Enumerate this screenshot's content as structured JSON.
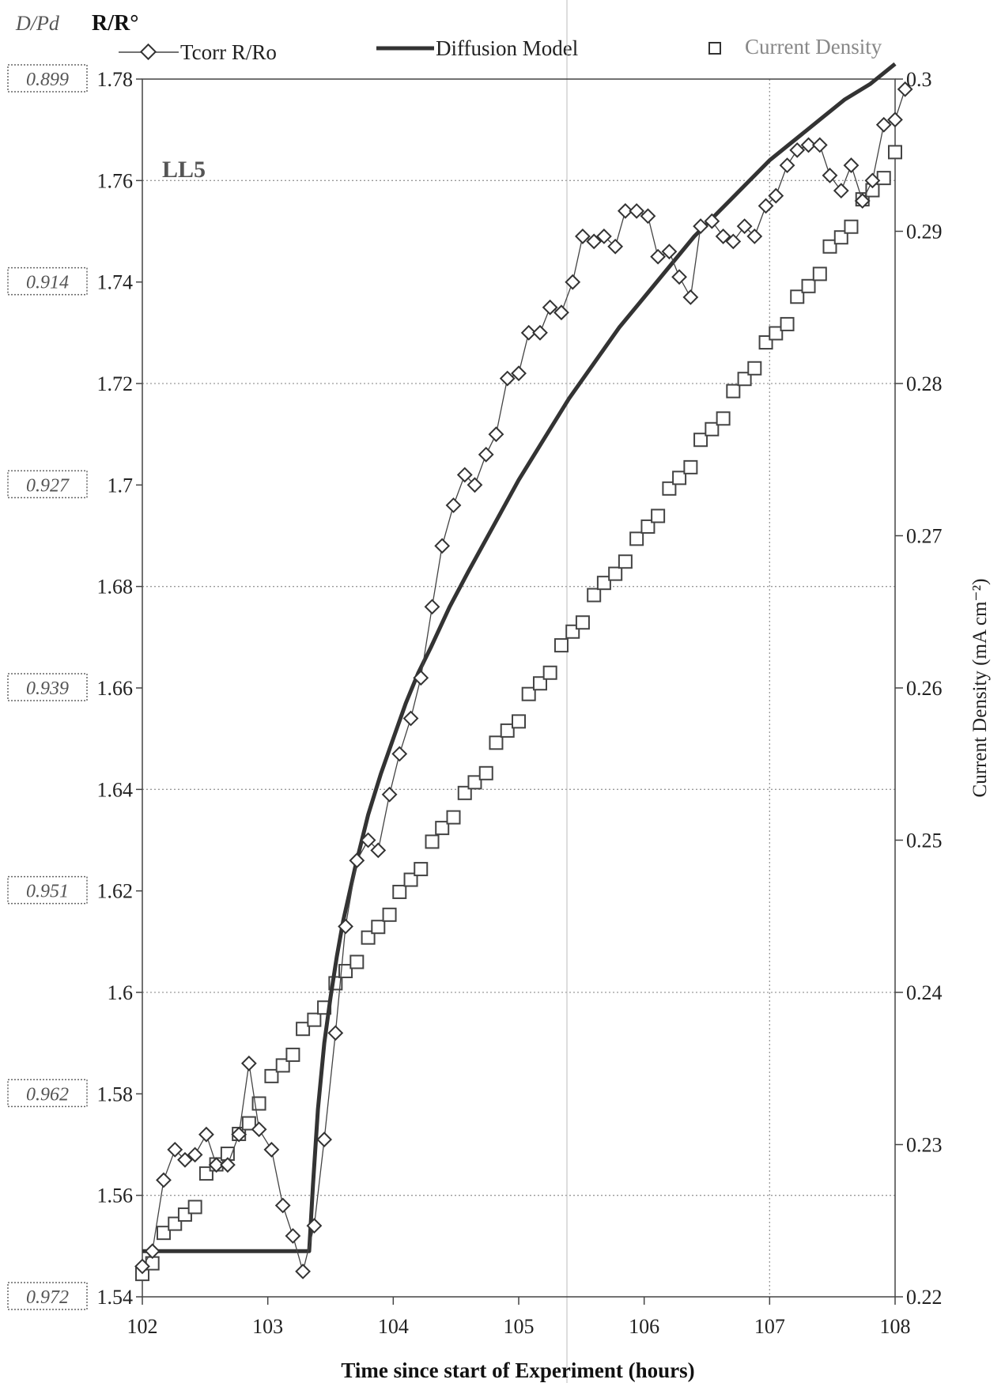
{
  "header": {
    "dpd_label": "D/Pd",
    "rr_label": "R/R°"
  },
  "legend": {
    "tcorr": "Tcorr R/Ro",
    "diffusion": "Diffusion Model",
    "current": "Current Density"
  },
  "annotation": "LL5",
  "colors": {
    "tcorr": "#444444",
    "diffusion": "#333333",
    "current": "#444444",
    "current_legend_text": "#888888",
    "grid": "#9a9a9a"
  },
  "chart_data": {
    "type": "line",
    "title": "",
    "xlabel": "Time since start of Experiment (hours)",
    "ylabel": "R/R°",
    "y2label": "Current Density (mA cm⁻²)",
    "xlim": [
      102,
      108
    ],
    "ylim": [
      1.54,
      1.78
    ],
    "y2lim": [
      0.22,
      0.3
    ],
    "x_ticks": [
      "102",
      "103",
      "104",
      "105",
      "106",
      "107",
      "108"
    ],
    "y_ticks": [
      "1.54",
      "1.56",
      "1.58",
      "1.6",
      "1.62",
      "1.64",
      "1.66",
      "1.68",
      "1.7",
      "1.72",
      "1.74",
      "1.76",
      "1.78"
    ],
    "y2_ticks": [
      "0.22",
      "0.23",
      "0.24",
      "0.25",
      "0.26",
      "0.27",
      "0.28",
      "0.29",
      "0.3"
    ],
    "dpd_ticks": [
      {
        "label": "0.899",
        "y": 1.78
      },
      {
        "label": "0.914",
        "y": 1.74
      },
      {
        "label": "0.927",
        "y": 1.7
      },
      {
        "label": "0.939",
        "y": 1.66
      },
      {
        "label": "0.951",
        "y": 1.62
      },
      {
        "label": "0.962",
        "y": 1.58
      },
      {
        "label": "0.972",
        "y": 1.54
      }
    ],
    "grid": true,
    "series": [
      {
        "name": "Tcorr R/Ro",
        "axis": "left",
        "marker": "diamond",
        "x": [
          102.0,
          102.08,
          102.17,
          102.26,
          102.34,
          102.42,
          102.51,
          102.59,
          102.68,
          102.77,
          102.85,
          102.93,
          103.03,
          103.12,
          103.2,
          103.28,
          103.37,
          103.45,
          103.54,
          103.62,
          103.71,
          103.8,
          103.88,
          103.97,
          104.05,
          104.14,
          104.22,
          104.31,
          104.39,
          104.48,
          104.57,
          104.65,
          104.74,
          104.82,
          104.91,
          105.0,
          105.08,
          105.17,
          105.25,
          105.34,
          105.43,
          105.51,
          105.6,
          105.68,
          105.77,
          105.85,
          105.94,
          106.03,
          106.11,
          106.2,
          106.28,
          106.37,
          106.45,
          106.54,
          106.63,
          106.71,
          106.8,
          106.88,
          106.97,
          107.05,
          107.14,
          107.22,
          107.31,
          107.4,
          107.48,
          107.57,
          107.65,
          107.74,
          107.82,
          107.91,
          108.0,
          108.08
        ],
        "values": [
          1.546,
          1.549,
          1.563,
          1.569,
          1.567,
          1.568,
          1.572,
          1.566,
          1.566,
          1.572,
          1.586,
          1.573,
          1.569,
          1.558,
          1.552,
          1.545,
          1.554,
          1.571,
          1.592,
          1.613,
          1.626,
          1.63,
          1.628,
          1.639,
          1.647,
          1.654,
          1.662,
          1.676,
          1.688,
          1.696,
          1.702,
          1.7,
          1.706,
          1.71,
          1.721,
          1.722,
          1.73,
          1.73,
          1.735,
          1.734,
          1.74,
          1.749,
          1.748,
          1.749,
          1.747,
          1.754,
          1.754,
          1.753,
          1.745,
          1.746,
          1.741,
          1.737,
          1.751,
          1.752,
          1.749,
          1.748,
          1.751,
          1.749,
          1.755,
          1.757,
          1.763,
          1.766,
          1.767,
          1.767,
          1.761,
          1.758,
          1.763,
          1.756,
          1.76,
          1.771,
          1.772,
          1.778
        ]
      },
      {
        "name": "Diffusion Model",
        "axis": "left",
        "marker": "line",
        "x": [
          102.0,
          102.5,
          103.0,
          103.33,
          103.36,
          103.4,
          103.45,
          103.5,
          103.55,
          103.6,
          103.7,
          103.8,
          103.9,
          104.0,
          104.1,
          104.2,
          104.3,
          104.45,
          104.6,
          104.8,
          105.0,
          105.2,
          105.4,
          105.6,
          105.8,
          106.0,
          106.2,
          106.4,
          106.6,
          106.8,
          107.0,
          107.2,
          107.4,
          107.6,
          107.8,
          108.0
        ],
        "values": [
          1.549,
          1.549,
          1.549,
          1.549,
          1.562,
          1.577,
          1.59,
          1.599,
          1.607,
          1.614,
          1.625,
          1.635,
          1.643,
          1.65,
          1.657,
          1.663,
          1.668,
          1.676,
          1.683,
          1.692,
          1.701,
          1.709,
          1.717,
          1.724,
          1.731,
          1.737,
          1.743,
          1.749,
          1.754,
          1.759,
          1.764,
          1.768,
          1.772,
          1.776,
          1.779,
          1.783
        ]
      },
      {
        "name": "Current Density",
        "axis": "right",
        "marker": "square",
        "x": [
          102.0,
          102.08,
          102.17,
          102.26,
          102.34,
          102.42,
          102.51,
          102.59,
          102.68,
          102.77,
          102.85,
          102.93,
          103.03,
          103.12,
          103.2,
          103.28,
          103.37,
          103.45,
          103.54,
          103.62,
          103.71,
          103.8,
          103.88,
          103.97,
          104.05,
          104.14,
          104.22,
          104.31,
          104.39,
          104.48,
          104.57,
          104.65,
          104.74,
          104.82,
          104.91,
          105.0,
          105.08,
          105.17,
          105.25,
          105.34,
          105.43,
          105.51,
          105.6,
          105.68,
          105.77,
          105.85,
          105.94,
          106.03,
          106.11,
          106.2,
          106.28,
          106.37,
          106.45,
          106.54,
          106.63,
          106.71,
          106.8,
          106.88,
          106.97,
          107.05,
          107.14,
          107.22,
          107.31,
          107.4,
          107.48,
          107.57,
          107.65,
          107.74,
          107.82,
          107.91,
          108.0
        ],
        "values": [
          0.2215,
          0.2222,
          0.2242,
          0.2248,
          0.2254,
          0.2259,
          0.2281,
          0.2287,
          0.2294,
          0.2307,
          0.2314,
          0.2327,
          0.2345,
          0.2352,
          0.2359,
          0.2376,
          0.2382,
          0.239,
          0.2406,
          0.2414,
          0.242,
          0.2436,
          0.2443,
          0.2451,
          0.2466,
          0.2474,
          0.2481,
          0.2499,
          0.2508,
          0.2515,
          0.2531,
          0.2538,
          0.2544,
          0.2564,
          0.2572,
          0.2578,
          0.2596,
          0.2603,
          0.261,
          0.2628,
          0.2637,
          0.2643,
          0.2661,
          0.2669,
          0.2675,
          0.2683,
          0.2698,
          0.2706,
          0.2713,
          0.2731,
          0.2738,
          0.2745,
          0.2763,
          0.277,
          0.2777,
          0.2795,
          0.2803,
          0.281,
          0.2827,
          0.2833,
          0.2839,
          0.2857,
          0.2864,
          0.2872,
          0.289,
          0.2896,
          0.2903,
          0.2921,
          0.2927,
          0.2935,
          0.2952
        ]
      }
    ]
  }
}
